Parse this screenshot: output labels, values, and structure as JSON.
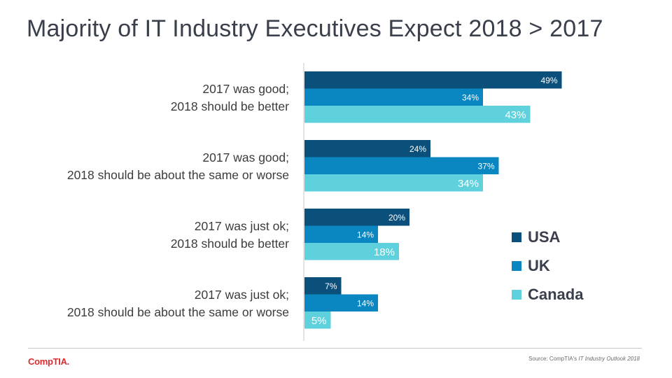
{
  "title": "Majority of IT Industry Executives Expect 2018 > 2017",
  "colors": {
    "usa": "#0b4f7b",
    "uk": "#0a86c0",
    "canada": "#5ed1dd",
    "axis": "#c8c8c8"
  },
  "chart_data": {
    "type": "bar",
    "orientation": "horizontal",
    "title": "Majority of IT Industry Executives Expect 2018 > 2017",
    "categories": [
      [
        "2017 was good;",
        "2018 should be better"
      ],
      [
        "2017 was good;",
        "2018 should be about the same or worse"
      ],
      [
        "2017 was just ok;",
        "2018 should be better"
      ],
      [
        "2017 was just ok;",
        "2018 should be about the same or worse"
      ]
    ],
    "series": [
      {
        "name": "USA",
        "values": [
          49,
          24,
          20,
          7
        ],
        "labels": [
          "49%",
          "24%",
          "20%",
          "7%"
        ]
      },
      {
        "name": "UK",
        "values": [
          34,
          37,
          14,
          14
        ],
        "labels": [
          "34%",
          "37%",
          "14%",
          "14%"
        ]
      },
      {
        "name": "Canada",
        "values": [
          43,
          34,
          18,
          5
        ],
        "labels": [
          "43%",
          "34%",
          "18%",
          "5%"
        ]
      }
    ],
    "xlim": [
      0,
      60
    ],
    "grid": false,
    "legend": "right"
  },
  "legend": [
    {
      "label": "USA",
      "color": "#0b4f7b"
    },
    {
      "label": "UK",
      "color": "#0a86c0"
    },
    {
      "label": "Canada",
      "color": "#5ed1dd"
    }
  ],
  "footer": {
    "logo": "CompTIA.",
    "source_prefix": "Source: CompTIA's ",
    "source_title": "IT Industry Outlook 2018"
  }
}
